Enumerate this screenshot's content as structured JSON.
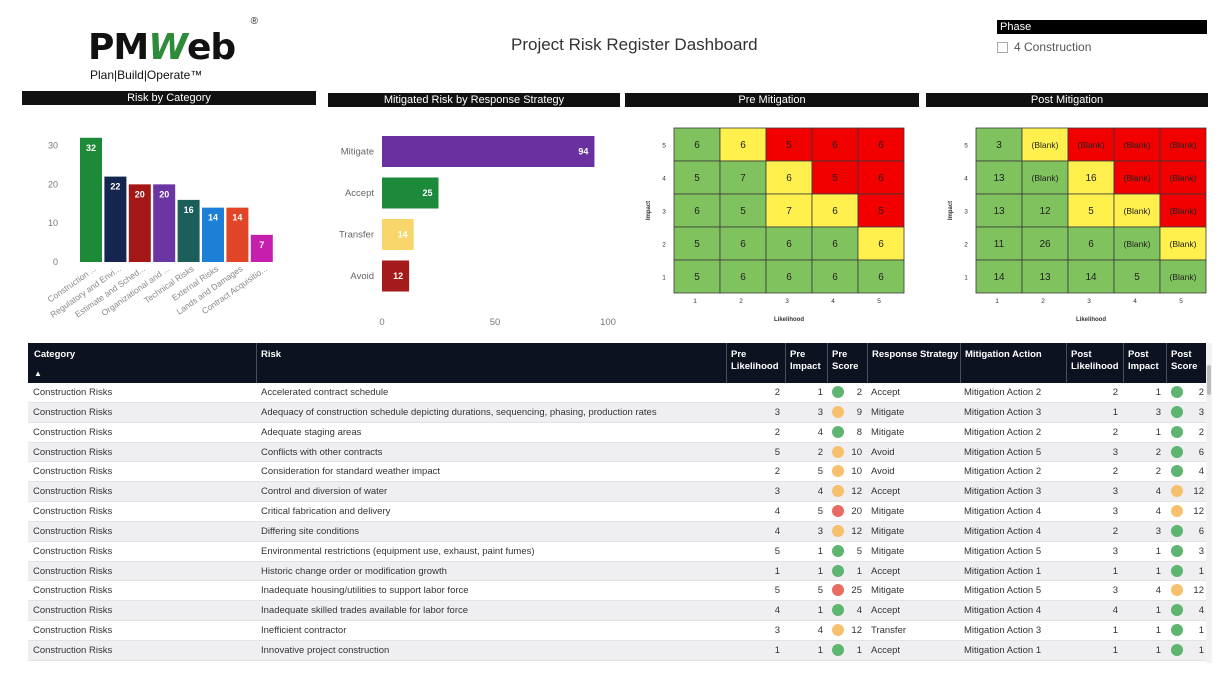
{
  "logo": {
    "main_pre": "PM",
    "main_w": "W",
    "main_post": "eb",
    "registered": "®",
    "tagline": "Plan|Build|Operate™"
  },
  "title": "Project Risk Register Dashboard",
  "phase_filter": {
    "header": "Phase",
    "option": "4 Construction"
  },
  "colors": {
    "green": "#80c25e",
    "yellow": "#fff04d",
    "red": "#f20000",
    "dot_green": "#5db570",
    "dot_orange": "#f7c06d",
    "dot_red": "#ea6b61"
  },
  "panels": {
    "risk_by_category": "Risk by Category",
    "mitigated_by_strategy": "Mitigated Risk by Response Strategy",
    "pre_mitigation": "Pre Mitigation",
    "post_mitigation": "Post Mitigation"
  },
  "chart_data": [
    {
      "type": "bar",
      "title": "Risk by Category",
      "categories": [
        "Construction ...",
        "Regulatory and Envi...",
        "Estimate and Sched...",
        "Organizational and ...",
        "Technical Risks",
        "External Risks",
        "Lands and Damages",
        "Contract Acquisitio..."
      ],
      "values": [
        32,
        22,
        20,
        20,
        16,
        14,
        14,
        7
      ],
      "colors": [
        "#1d8a37",
        "#14264f",
        "#a31717",
        "#6b35a3",
        "#1b5e5a",
        "#1e7fd6",
        "#df4526",
        "#c61fad"
      ],
      "yticks": [
        0,
        10,
        20,
        30
      ],
      "ylim": [
        0,
        34
      ]
    },
    {
      "type": "bar",
      "orientation": "horizontal",
      "title": "Mitigated Risk by Response Strategy",
      "categories": [
        "Mitigate",
        "Accept",
        "Transfer",
        "Avoid"
      ],
      "values": [
        94,
        25,
        14,
        12
      ],
      "colors": [
        "#6a30a0",
        "#1c8a3a",
        "#f8d66b",
        "#a51a1a"
      ],
      "xticks": [
        0,
        50,
        100
      ],
      "xlim": [
        0,
        100
      ]
    },
    {
      "type": "heatmap",
      "title": "Pre Mitigation",
      "xlabel": "Likelihood",
      "ylabel": "Impact",
      "x": [
        "1",
        "2",
        "3",
        "4",
        "5"
      ],
      "y": [
        "5",
        "4",
        "3",
        "2",
        "1"
      ],
      "values": [
        [
          "6",
          "6",
          "5",
          "6",
          "6"
        ],
        [
          "5",
          "7",
          "6",
          "5",
          "6"
        ],
        [
          "6",
          "5",
          "7",
          "6",
          "5"
        ],
        [
          "5",
          "6",
          "6",
          "6",
          "6"
        ],
        [
          "5",
          "6",
          "6",
          "6",
          "6"
        ]
      ],
      "cell_colors": [
        [
          "green",
          "yellow",
          "red",
          "red",
          "red"
        ],
        [
          "green",
          "green",
          "yellow",
          "red",
          "red"
        ],
        [
          "green",
          "green",
          "yellow",
          "yellow",
          "red"
        ],
        [
          "green",
          "green",
          "green",
          "green",
          "yellow"
        ],
        [
          "green",
          "green",
          "green",
          "green",
          "green"
        ]
      ]
    },
    {
      "type": "heatmap",
      "title": "Post Mitigation",
      "xlabel": "Likelihood",
      "ylabel": "Impact",
      "x": [
        "1",
        "2",
        "3",
        "4",
        "5"
      ],
      "y": [
        "5",
        "4",
        "3",
        "2",
        "1"
      ],
      "values": [
        [
          "3",
          "(Blank)",
          "(Blank)",
          "(Blank)",
          "(Blank)"
        ],
        [
          "13",
          "(Blank)",
          "16",
          "(Blank)",
          "(Blank)"
        ],
        [
          "13",
          "12",
          "5",
          "(Blank)",
          "(Blank)"
        ],
        [
          "11",
          "26",
          "6",
          "(Blank)",
          "(Blank)"
        ],
        [
          "14",
          "13",
          "14",
          "5",
          "(Blank)"
        ]
      ],
      "cell_colors": [
        [
          "green",
          "yellow",
          "red",
          "red",
          "red"
        ],
        [
          "green",
          "green",
          "yellow",
          "red",
          "red"
        ],
        [
          "green",
          "green",
          "yellow",
          "yellow",
          "red"
        ],
        [
          "green",
          "green",
          "green",
          "green",
          "yellow"
        ],
        [
          "green",
          "green",
          "green",
          "green",
          "green"
        ]
      ]
    }
  ],
  "table": {
    "headers": {
      "category": "Category",
      "risk": "Risk",
      "pre_likelihood": [
        "Pre",
        "Likelihood"
      ],
      "pre_impact": [
        "Pre",
        "Impact"
      ],
      "pre_score": [
        "Pre",
        "Score"
      ],
      "response_strategy": "Response Strategy",
      "mitigation_action": "Mitigation Action",
      "post_likelihood": [
        "Post",
        "Likelihood"
      ],
      "post_impact": [
        "Post",
        "Impact"
      ],
      "post_score": [
        "Post",
        "Score"
      ]
    },
    "sort_indicator": "▲",
    "rows": [
      {
        "category": "Construction Risks",
        "risk": "Accelerated contract schedule",
        "pl": "2",
        "pi": "1",
        "ps_color": "green",
        "ps": "2",
        "strategy": "Accept",
        "action": "Mitigation Action 2",
        "ql": "2",
        "qi": "1",
        "qs_color": "green",
        "qs": "2"
      },
      {
        "category": "Construction Risks",
        "risk": "Adequacy of construction schedule depicting durations, sequencing, phasing, production rates",
        "pl": "3",
        "pi": "3",
        "ps_color": "orange",
        "ps": "9",
        "strategy": "Mitigate",
        "action": "Mitigation Action 3",
        "ql": "1",
        "qi": "3",
        "qs_color": "green",
        "qs": "3"
      },
      {
        "category": "Construction Risks",
        "risk": "Adequate staging areas",
        "pl": "2",
        "pi": "4",
        "ps_color": "green",
        "ps": "8",
        "strategy": "Mitigate",
        "action": "Mitigation Action 2",
        "ql": "2",
        "qi": "1",
        "qs_color": "green",
        "qs": "2"
      },
      {
        "category": "Construction Risks",
        "risk": "Conflicts with other contracts",
        "pl": "5",
        "pi": "2",
        "ps_color": "orange",
        "ps": "10",
        "strategy": "Avoid",
        "action": "Mitigation Action 5",
        "ql": "3",
        "qi": "2",
        "qs_color": "green",
        "qs": "6"
      },
      {
        "category": "Construction Risks",
        "risk": "Consideration for standard weather impact",
        "pl": "2",
        "pi": "5",
        "ps_color": "orange",
        "ps": "10",
        "strategy": "Avoid",
        "action": "Mitigation Action 2",
        "ql": "2",
        "qi": "2",
        "qs_color": "green",
        "qs": "4"
      },
      {
        "category": "Construction Risks",
        "risk": "Control and diversion of water",
        "pl": "3",
        "pi": "4",
        "ps_color": "orange",
        "ps": "12",
        "strategy": "Accept",
        "action": "Mitigation Action 3",
        "ql": "3",
        "qi": "4",
        "qs_color": "orange",
        "qs": "12"
      },
      {
        "category": "Construction Risks",
        "risk": "Critical fabrication and delivery",
        "pl": "4",
        "pi": "5",
        "ps_color": "red",
        "ps": "20",
        "strategy": "Mitigate",
        "action": "Mitigation Action 4",
        "ql": "3",
        "qi": "4",
        "qs_color": "orange",
        "qs": "12"
      },
      {
        "category": "Construction Risks",
        "risk": "Differing site conditions",
        "pl": "4",
        "pi": "3",
        "ps_color": "orange",
        "ps": "12",
        "strategy": "Mitigate",
        "action": "Mitigation Action 4",
        "ql": "2",
        "qi": "3",
        "qs_color": "green",
        "qs": "6"
      },
      {
        "category": "Construction Risks",
        "risk": "Environmental restrictions (equipment use, exhaust, paint fumes)",
        "pl": "5",
        "pi": "1",
        "ps_color": "green",
        "ps": "5",
        "strategy": "Mitigate",
        "action": "Mitigation Action 5",
        "ql": "3",
        "qi": "1",
        "qs_color": "green",
        "qs": "3"
      },
      {
        "category": "Construction Risks",
        "risk": "Historic change order or modification growth",
        "pl": "1",
        "pi": "1",
        "ps_color": "green",
        "ps": "1",
        "strategy": "Accept",
        "action": "Mitigation Action 1",
        "ql": "1",
        "qi": "1",
        "qs_color": "green",
        "qs": "1"
      },
      {
        "category": "Construction Risks",
        "risk": "Inadequate housing/utilities to support labor force",
        "pl": "5",
        "pi": "5",
        "ps_color": "red",
        "ps": "25",
        "strategy": "Mitigate",
        "action": "Mitigation Action 5",
        "ql": "3",
        "qi": "4",
        "qs_color": "orange",
        "qs": "12"
      },
      {
        "category": "Construction Risks",
        "risk": "Inadequate skilled trades available for labor force",
        "pl": "4",
        "pi": "1",
        "ps_color": "green",
        "ps": "4",
        "strategy": "Accept",
        "action": "Mitigation Action 4",
        "ql": "4",
        "qi": "1",
        "qs_color": "green",
        "qs": "4"
      },
      {
        "category": "Construction Risks",
        "risk": "Inefficient contractor",
        "pl": "3",
        "pi": "4",
        "ps_color": "orange",
        "ps": "12",
        "strategy": "Transfer",
        "action": "Mitigation Action 3",
        "ql": "1",
        "qi": "1",
        "qs_color": "green",
        "qs": "1"
      },
      {
        "category": "Construction Risks",
        "risk": "Innovative project construction",
        "pl": "1",
        "pi": "1",
        "ps_color": "green",
        "ps": "1",
        "strategy": "Accept",
        "action": "Mitigation Action 1",
        "ql": "1",
        "qi": "1",
        "qs_color": "green",
        "qs": "1"
      }
    ]
  }
}
